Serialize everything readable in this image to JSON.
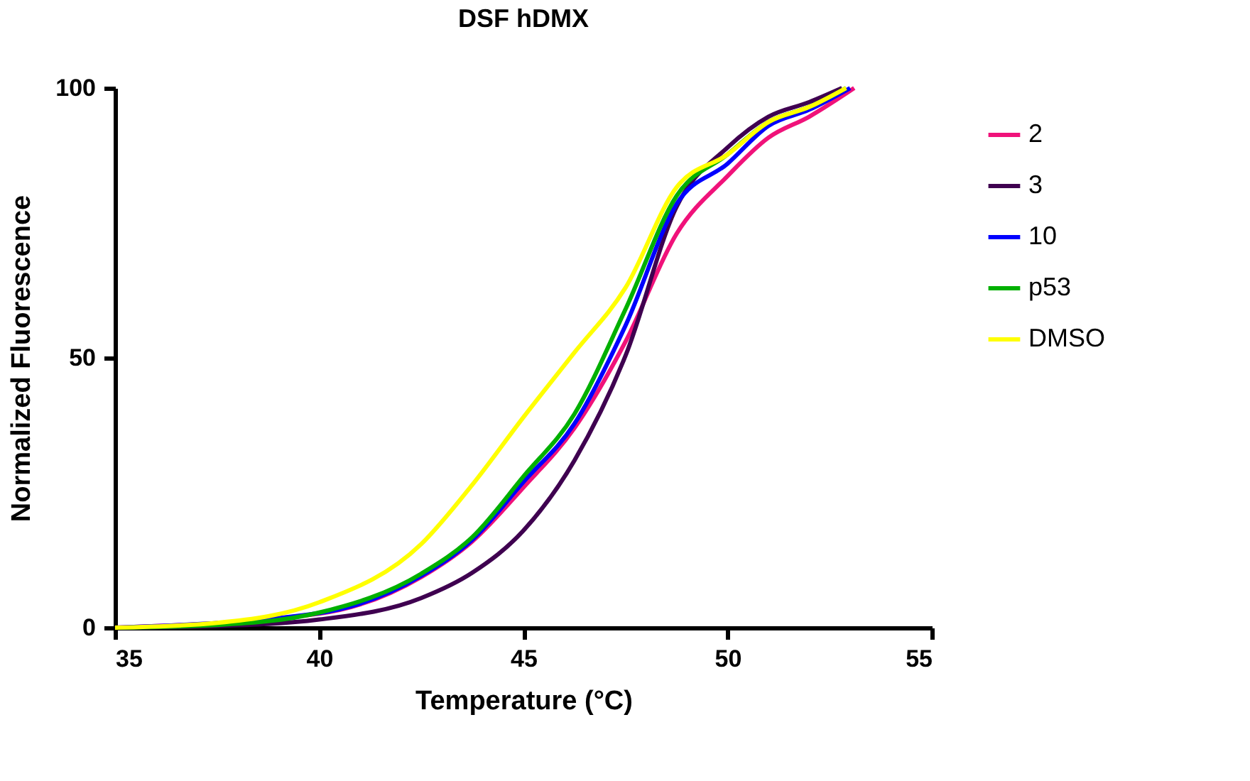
{
  "chart_data": {
    "type": "line",
    "title": "DSF hDMX",
    "xlabel": "Temperature (°C)",
    "ylabel": "Normalized Fluorescence",
    "xlim": [
      35,
      55
    ],
    "xticks": [
      35,
      40,
      45,
      50,
      55
    ],
    "ylim": [
      0,
      100
    ],
    "yticks": [
      0,
      50,
      100
    ],
    "grid": false,
    "legend": "right",
    "marker": "none",
    "line_style": "solid",
    "series": [
      {
        "name": "2",
        "color": "#f0127a",
        "values": [
          0,
          null,
          2.6,
          9.4,
          16,
          26,
          37,
          53,
          73,
          83.7,
          90.8,
          94.7,
          100
        ],
        "x": [
          35,
          37.5,
          40,
          42.5,
          43.75,
          45,
          46.25,
          47.5,
          48.75,
          50,
          51,
          52,
          53.1
        ]
      },
      {
        "name": "3",
        "color": "#3f0050",
        "values": [
          0,
          0.3,
          1.5,
          5.5,
          10.2,
          18,
          31,
          50.4,
          78,
          89,
          94.7,
          97.4,
          100
        ],
        "x": [
          35,
          37.5,
          40,
          42.5,
          43.75,
          45,
          46.25,
          47.5,
          48.75,
          50,
          51,
          52,
          52.8
        ]
      },
      {
        "name": "10",
        "color": "#0000ff",
        "values": [
          0,
          null,
          2.7,
          9.6,
          16.3,
          27,
          37.8,
          56,
          78.5,
          86,
          93,
          96,
          100
        ],
        "x": [
          35,
          37.5,
          40,
          42.5,
          43.75,
          45,
          46.25,
          47.5,
          48.75,
          50,
          51,
          52,
          53
        ]
      },
      {
        "name": "p53",
        "color": "#00b000",
        "values": [
          0,
          0.5,
          2.8,
          10,
          16.8,
          28,
          39.6,
          59,
          80,
          87.7,
          93.7,
          96.5,
          100
        ],
        "x": [
          35,
          37.5,
          40,
          42.5,
          43.75,
          45,
          46.25,
          47.5,
          48.75,
          50,
          51,
          52,
          52.9
        ]
      },
      {
        "name": "DMSO",
        "color": "#ffff00",
        "values": [
          0,
          0.9,
          4.7,
          15.5,
          26.5,
          39,
          51,
          63,
          81.6,
          87.7,
          93.7,
          96.5,
          100
        ],
        "x": [
          35,
          37.5,
          40,
          42.5,
          43.75,
          45,
          46.25,
          47.5,
          48.75,
          50,
          51,
          52,
          52.9
        ]
      }
    ]
  }
}
